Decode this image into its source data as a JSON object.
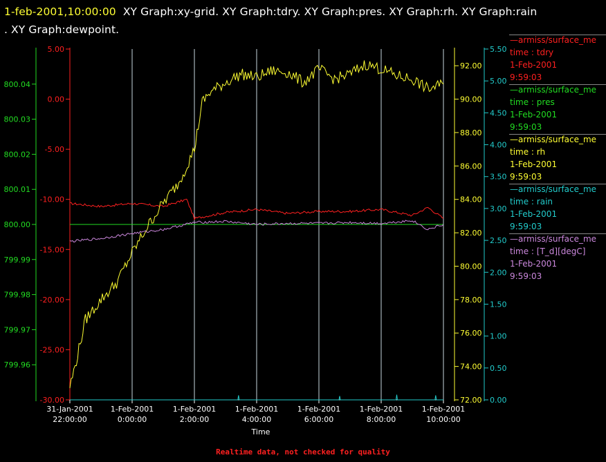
{
  "header": {
    "time": "1-feb-2001,10:00:00",
    "graphs_line1": "XY Graph:xy-grid.  XY Graph:tdry.  XY Graph:pres.  XY Graph:rh.  XY Graph:rain",
    "graphs_line2": ".  XY Graph:dewpoint."
  },
  "footer": "Realtime data, not checked for quality",
  "legend": [
    {
      "source": "—armiss/surface_me",
      "variable": "time : tdry",
      "date": "1-Feb-2001",
      "time": "9:59:03",
      "color": "#ff2020"
    },
    {
      "source": "—armiss/surface_me",
      "variable": "time : pres",
      "date": "1-Feb-2001",
      "time": "9:59:03",
      "color": "#22dd22"
    },
    {
      "source": "—armiss/surface_me",
      "variable": "time : rh",
      "date": "1-Feb-2001",
      "time": "9:59:03",
      "color": "#ffff33"
    },
    {
      "source": "—armiss/surface_me",
      "variable": "time : rain",
      "date": "1-Feb-2001",
      "time": "9:59:03",
      "color": "#22cccc"
    },
    {
      "source": "—armiss/surface_me",
      "variable": "time : [T_d][degC]",
      "date": "1-Feb-2001",
      "time": "9:59:03",
      "color": "#cc88dd"
    }
  ],
  "chart_data": {
    "type": "line",
    "xlabel": "Time",
    "x_ticks": [
      {
        "value": "2001-01-31T22:00",
        "l1": "31-Jan-2001",
        "l2": "22:00:00"
      },
      {
        "value": "2001-02-01T00:00",
        "l1": "1-Feb-2001",
        "l2": "0:00:00"
      },
      {
        "value": "2001-02-01T02:00",
        "l1": "1-Feb-2001",
        "l2": "2:00:00"
      },
      {
        "value": "2001-02-01T04:00",
        "l1": "1-Feb-2001",
        "l2": "4:00:00"
      },
      {
        "value": "2001-02-01T06:00",
        "l1": "1-Feb-2001",
        "l2": "6:00:00"
      },
      {
        "value": "2001-02-01T08:00",
        "l1": "1-Feb-2001",
        "l2": "8:00:00"
      },
      {
        "value": "2001-02-01T10:00",
        "l1": "1-Feb-2001",
        "l2": "10:00:00"
      }
    ],
    "x_range": [
      "2001-01-31T22:00",
      "2001-02-01T10:00"
    ],
    "grid": true,
    "axes": {
      "pres": {
        "side": "left-outer",
        "range": [
          799.95,
          800.05
        ],
        "color": "#22dd22",
        "ticks": [
          "799.96",
          "799.97",
          "799.98",
          "799.99",
          "800.00",
          "800.01",
          "800.02",
          "800.03",
          "800.04"
        ]
      },
      "tdry": {
        "side": "left-inner",
        "range": [
          -30,
          5
        ],
        "color": "#ff2020",
        "ticks": [
          "-30.00",
          "-25.00",
          "-20.00",
          "-15.00",
          "-10.00",
          "-5.00",
          "0.00",
          "5.00"
        ]
      },
      "rh": {
        "side": "right-inner",
        "range": [
          72,
          93
        ],
        "color": "#ffff33",
        "ticks": [
          "72.00",
          "74.00",
          "76.00",
          "78.00",
          "80.00",
          "82.00",
          "84.00",
          "86.00",
          "88.00",
          "90.00",
          "92.00"
        ]
      },
      "rain": {
        "side": "right-outer",
        "range": [
          0,
          5.5
        ],
        "color": "#22cccc",
        "ticks": [
          "0.00",
          "0.50",
          "1.00",
          "1.50",
          "2.00",
          "2.50",
          "3.00",
          "3.50",
          "4.00",
          "4.50",
          "5.00",
          "5.50"
        ]
      }
    },
    "series": [
      {
        "name": "time : tdry",
        "axis": "tdry",
        "color": "#ff2020",
        "x": [
          "2001-01-31T22:00",
          "2001-01-31T23:00",
          "2001-02-01T00:00",
          "2001-02-01T01:00",
          "2001-02-01T01:45",
          "2001-02-01T02:00",
          "2001-02-01T03:00",
          "2001-02-01T04:00",
          "2001-02-01T05:00",
          "2001-02-01T06:00",
          "2001-02-01T07:00",
          "2001-02-01T08:00",
          "2001-02-01T09:00",
          "2001-02-01T09:30",
          "2001-02-01T10:00"
        ],
        "y": [
          -10.4,
          -10.7,
          -10.4,
          -10.7,
          -10.0,
          -11.9,
          -11.3,
          -11.0,
          -11.4,
          -11.2,
          -11.2,
          -11.0,
          -11.6,
          -10.8,
          -11.9
        ]
      },
      {
        "name": "time : pres",
        "axis": "pres",
        "color": "#22dd22",
        "x": [
          "2001-01-31T22:00",
          "2001-02-01T10:00"
        ],
        "y": [
          800.0,
          800.0
        ]
      },
      {
        "name": "time : rh",
        "axis": "rh",
        "color": "#ffff33",
        "x": [
          "2001-01-31T22:00",
          "2001-01-31T22:10",
          "2001-01-31T22:30",
          "2001-01-31T23:00",
          "2001-01-31T23:30",
          "2001-02-01T00:00",
          "2001-02-01T00:30",
          "2001-02-01T01:00",
          "2001-02-01T01:30",
          "2001-02-01T02:00",
          "2001-02-01T02:15",
          "2001-02-01T02:30",
          "2001-02-01T03:00",
          "2001-02-01T03:30",
          "2001-02-01T04:00",
          "2001-02-01T04:30",
          "2001-02-01T05:00",
          "2001-02-01T05:30",
          "2001-02-01T06:00",
          "2001-02-01T06:30",
          "2001-02-01T07:00",
          "2001-02-01T07:30",
          "2001-02-01T08:00",
          "2001-02-01T08:30",
          "2001-02-01T09:00",
          "2001-02-01T09:30",
          "2001-02-01T10:00"
        ],
        "y": [
          72.8,
          74.0,
          76.8,
          78.0,
          79.0,
          80.8,
          82.4,
          83.8,
          85.0,
          87.0,
          89.8,
          90.4,
          91.0,
          91.5,
          91.3,
          91.7,
          91.6,
          91.0,
          91.8,
          91.2,
          91.5,
          92.1,
          91.8,
          91.4,
          91.2,
          90.6,
          90.9
        ]
      },
      {
        "name": "time : rain",
        "axis": "rain",
        "color": "#22cccc",
        "x": [
          "2001-01-31T22:00",
          "2001-02-01T03:25",
          "2001-02-01T06:40",
          "2001-02-01T08:30",
          "2001-02-01T09:45",
          "2001-02-01T10:00"
        ],
        "y": [
          0,
          0.07,
          0.06,
          0.08,
          0.07,
          0
        ],
        "spikes": true
      },
      {
        "name": "time : [T_d][degC]",
        "axis": "tdry",
        "color": "#cc88dd",
        "x": [
          "2001-01-31T22:00",
          "2001-01-31T23:00",
          "2001-02-01T00:00",
          "2001-02-01T01:00",
          "2001-02-01T02:00",
          "2001-02-01T03:00",
          "2001-02-01T04:00",
          "2001-02-01T05:00",
          "2001-02-01T06:00",
          "2001-02-01T07:00",
          "2001-02-01T08:00",
          "2001-02-01T09:00",
          "2001-02-01T09:30",
          "2001-02-01T10:00"
        ],
        "y": [
          -14.2,
          -13.9,
          -13.4,
          -13.0,
          -12.3,
          -12.2,
          -12.5,
          -12.4,
          -12.4,
          -12.3,
          -12.4,
          -12.1,
          -13.0,
          -12.5
        ]
      }
    ]
  }
}
